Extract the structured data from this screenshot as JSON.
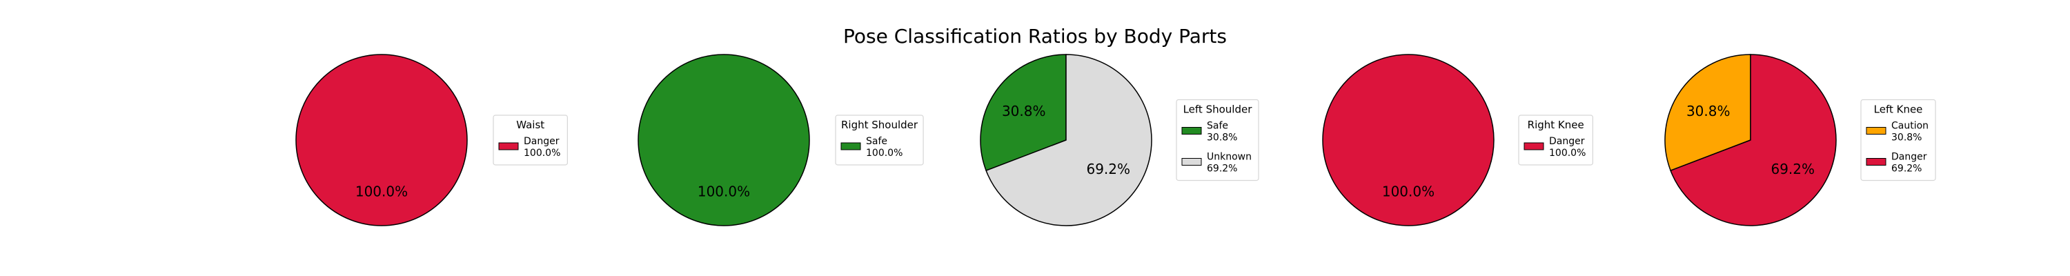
{
  "chart_data": {
    "type": "pie",
    "title": "Pose Classification Ratios by Body Parts",
    "colors": {
      "Danger": "#dc143c",
      "Safe": "#228b22",
      "Unknown": "#dcdcdc",
      "Caution": "#ffa500"
    },
    "charts": [
      {
        "title": "Waist",
        "slices": [
          {
            "label": "Danger",
            "value": 100.0,
            "pct_label": "100.0%"
          }
        ]
      },
      {
        "title": "Right Shoulder",
        "slices": [
          {
            "label": "Safe",
            "value": 100.0,
            "pct_label": "100.0%"
          }
        ]
      },
      {
        "title": "Left Shoulder",
        "slices": [
          {
            "label": "Safe",
            "value": 30.8,
            "pct_label": "30.8%"
          },
          {
            "label": "Unknown",
            "value": 69.2,
            "pct_label": "69.2%"
          }
        ]
      },
      {
        "title": "Right Knee",
        "slices": [
          {
            "label": "Danger",
            "value": 100.0,
            "pct_label": "100.0%"
          }
        ]
      },
      {
        "title": "Left Knee",
        "slices": [
          {
            "label": "Caution",
            "value": 30.8,
            "pct_label": "30.8%"
          },
          {
            "label": "Danger",
            "value": 69.2,
            "pct_label": "69.2%"
          }
        ]
      }
    ]
  }
}
